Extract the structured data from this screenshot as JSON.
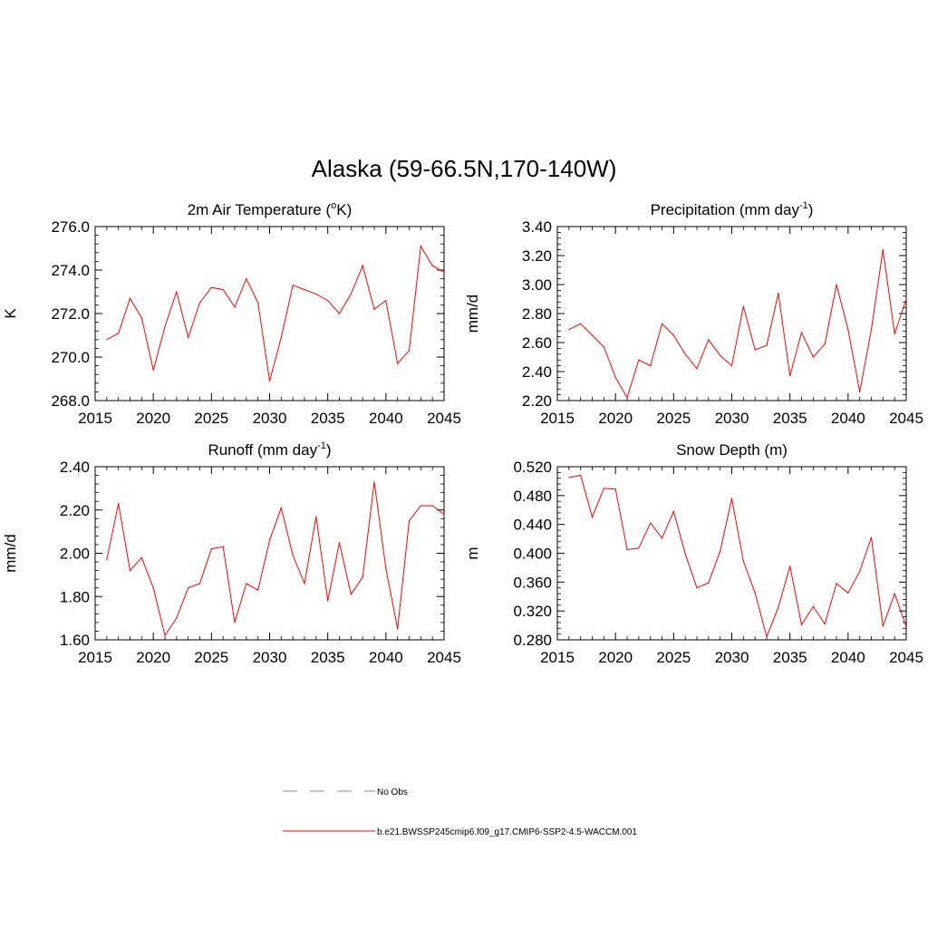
{
  "title": "Alaska (59-66.5N,170-140W)",
  "series_color": "#ff0000",
  "obs_color": "#9999dd",
  "legend": {
    "obs_label": "No Obs",
    "model_label": "b.e21.BWSSP245cmip6.f09_g17.CMIP6-SSP2-4.5-WACCM.001"
  },
  "chart_data": [
    {
      "type": "line",
      "title_main": "2m Air Temperature (",
      "title_sup": "o",
      "title_tail": "K)",
      "ylabel": "K",
      "xlim": [
        2015,
        2045
      ],
      "ylim": [
        268,
        276
      ],
      "xticks": [
        2015,
        2020,
        2025,
        2030,
        2035,
        2040,
        2045
      ],
      "xtick_labels": [
        "2015",
        "2020",
        "2025",
        "2030",
        "2035",
        "2040",
        "2045"
      ],
      "yticks": [
        268,
        270,
        272,
        274,
        276
      ],
      "ytick_labels": [
        "268.0",
        "270.0",
        "272.0",
        "274.0",
        "276.0"
      ],
      "yminor_step": 0.4,
      "x": [
        2016,
        2017,
        2018,
        2019,
        2020,
        2021,
        2022,
        2023,
        2024,
        2025,
        2026,
        2027,
        2028,
        2029,
        2030,
        2031,
        2032,
        2033,
        2034,
        2035,
        2036,
        2037,
        2038,
        2039,
        2040,
        2041,
        2042,
        2043,
        2044,
        2045
      ],
      "series": [
        {
          "name": "b.e21.BWSSP245cmip6.f09_g17.CMIP6-SSP2-4.5-WACCM.001",
          "values": [
            270.8,
            271.1,
            272.7,
            271.8,
            269.4,
            271.4,
            273.0,
            270.9,
            272.5,
            273.2,
            273.1,
            272.3,
            273.6,
            272.5,
            268.9,
            270.9,
            273.3,
            273.1,
            272.9,
            272.6,
            272.0,
            272.9,
            274.2,
            272.2,
            272.6,
            269.7,
            270.3,
            275.1,
            274.2,
            273.9
          ]
        }
      ]
    },
    {
      "type": "line",
      "title_main": "Precipitation (mm day",
      "title_sup": "-1",
      "title_tail": ")",
      "ylabel": "mm/d",
      "xlim": [
        2015,
        2045
      ],
      "ylim": [
        2.2,
        3.4
      ],
      "xticks": [
        2015,
        2020,
        2025,
        2030,
        2035,
        2040,
        2045
      ],
      "xtick_labels": [
        "2015",
        "2020",
        "2025",
        "2030",
        "2035",
        "2040",
        "2045"
      ],
      "yticks": [
        2.2,
        2.4,
        2.6,
        2.8,
        3.0,
        3.2,
        3.4
      ],
      "ytick_labels": [
        "2.20",
        "2.40",
        "2.60",
        "2.80",
        "3.00",
        "3.20",
        "3.40"
      ],
      "yminor_step": 0.04,
      "x": [
        2016,
        2017,
        2018,
        2019,
        2020,
        2021,
        2022,
        2023,
        2024,
        2025,
        2026,
        2027,
        2028,
        2029,
        2030,
        2031,
        2032,
        2033,
        2034,
        2035,
        2036,
        2037,
        2038,
        2039,
        2040,
        2041,
        2042,
        2043,
        2044,
        2045
      ],
      "series": [
        {
          "name": "b.e21.BWSSP245cmip6.f09_g17.CMIP6-SSP2-4.5-WACCM.001",
          "values": [
            2.69,
            2.73,
            2.65,
            2.57,
            2.36,
            2.22,
            2.48,
            2.44,
            2.73,
            2.65,
            2.52,
            2.42,
            2.62,
            2.51,
            2.44,
            2.85,
            2.55,
            2.58,
            2.94,
            2.37,
            2.67,
            2.5,
            2.59,
            3.0,
            2.69,
            2.26,
            2.69,
            3.24,
            2.66,
            2.9
          ]
        }
      ]
    },
    {
      "type": "line",
      "title_main": "Runoff (mm day",
      "title_sup": "-1",
      "title_tail": ")",
      "ylabel": "mm/d",
      "xlim": [
        2015,
        2045
      ],
      "ylim": [
        1.6,
        2.4
      ],
      "xticks": [
        2015,
        2020,
        2025,
        2030,
        2035,
        2040,
        2045
      ],
      "xtick_labels": [
        "2015",
        "2020",
        "2025",
        "2030",
        "2035",
        "2040",
        "2045"
      ],
      "yticks": [
        1.6,
        1.8,
        2.0,
        2.2,
        2.4
      ],
      "ytick_labels": [
        "1.60",
        "1.80",
        "2.00",
        "2.20",
        "2.40"
      ],
      "yminor_step": 0.04,
      "x": [
        2016,
        2017,
        2018,
        2019,
        2020,
        2021,
        2022,
        2023,
        2024,
        2025,
        2026,
        2027,
        2028,
        2029,
        2030,
        2031,
        2032,
        2033,
        2034,
        2035,
        2036,
        2037,
        2038,
        2039,
        2040,
        2041,
        2042,
        2043,
        2044,
        2045
      ],
      "series": [
        {
          "name": "b.e21.BWSSP245cmip6.f09_g17.CMIP6-SSP2-4.5-WACCM.001",
          "values": [
            1.97,
            2.23,
            1.92,
            1.98,
            1.84,
            1.62,
            1.7,
            1.84,
            1.86,
            2.02,
            2.03,
            1.68,
            1.86,
            1.83,
            2.06,
            2.21,
            1.99,
            1.86,
            2.17,
            1.78,
            2.05,
            1.81,
            1.89,
            2.33,
            1.93,
            1.65,
            2.15,
            2.22,
            2.22,
            2.18
          ]
        }
      ]
    },
    {
      "type": "line",
      "title_main": "Snow Depth (m)",
      "title_sup": "",
      "title_tail": "",
      "ylabel": "m",
      "xlim": [
        2015,
        2045
      ],
      "ylim": [
        0.28,
        0.52
      ],
      "xticks": [
        2015,
        2020,
        2025,
        2030,
        2035,
        2040,
        2045
      ],
      "xtick_labels": [
        "2015",
        "2020",
        "2025",
        "2030",
        "2035",
        "2040",
        "2045"
      ],
      "yticks": [
        0.28,
        0.32,
        0.36,
        0.4,
        0.44,
        0.48,
        0.52
      ],
      "ytick_labels": [
        "0.280",
        "0.320",
        "0.360",
        "0.400",
        "0.440",
        "0.480",
        "0.520"
      ],
      "yminor_step": 0.008,
      "x": [
        2016,
        2017,
        2018,
        2019,
        2020,
        2021,
        2022,
        2023,
        2024,
        2025,
        2026,
        2027,
        2028,
        2029,
        2030,
        2031,
        2032,
        2033,
        2034,
        2035,
        2036,
        2037,
        2038,
        2039,
        2040,
        2041,
        2042,
        2043,
        2044,
        2045
      ],
      "series": [
        {
          "name": "b.e21.BWSSP245cmip6.f09_g17.CMIP6-SSP2-4.5-WACCM.001",
          "values": [
            0.505,
            0.508,
            0.45,
            0.49,
            0.489,
            0.405,
            0.407,
            0.442,
            0.421,
            0.458,
            0.399,
            0.352,
            0.359,
            0.403,
            0.476,
            0.389,
            0.345,
            0.284,
            0.325,
            0.382,
            0.301,
            0.326,
            0.302,
            0.358,
            0.345,
            0.375,
            0.422,
            0.299,
            0.344,
            0.298
          ]
        }
      ]
    }
  ]
}
